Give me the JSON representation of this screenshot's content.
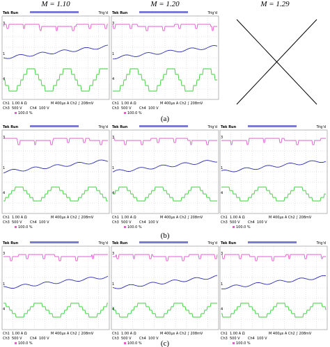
{
  "columns": [
    "M = 1.10",
    "M = 1.20",
    "M = 1.29"
  ],
  "panel_labels": [
    "(a)",
    "(b)",
    "(c)"
  ],
  "scope": {
    "header_left": "Tek Run",
    "header_right": "Trig'd",
    "ch1": "Ch1",
    "ch1_setting": "1.00 A Ω",
    "timebase": "M 400µs A Ch2 ∫ 208mV",
    "ch3": "Ch3",
    "ch3_setting": "500 V",
    "ch4": "Ch4",
    "ch4_setting": "100 V",
    "percent": "100.0 %",
    "markers": [
      "3",
      "1",
      "4"
    ]
  }
}
